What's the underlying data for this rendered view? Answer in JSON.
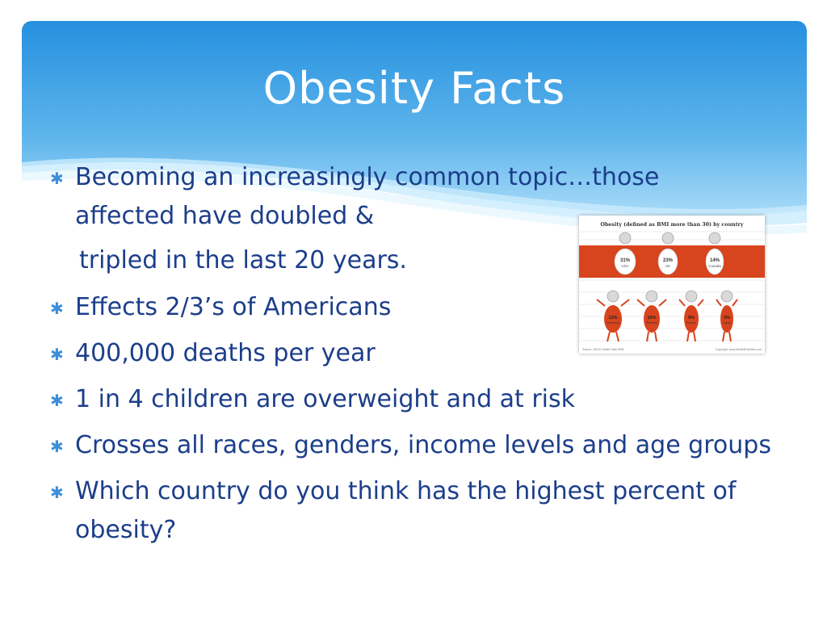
{
  "slide": {
    "title": "Obesity Facts",
    "bullets": [
      {
        "text": "Becoming an increasingly common topic…those affected have doubled &"
      },
      {
        "text": "tripled in the last 20 years.",
        "continuation": true
      },
      {
        "text": "Effects 2/3’s of Americans"
      },
      {
        "text": "400,000 deaths per year"
      },
      {
        "text": "1 in 4 children are overweight and at risk"
      },
      {
        "text": "Crosses all races, genders, income levels and age groups"
      },
      {
        "text": "Which country do you think has the highest percent of obesity?"
      }
    ],
    "bullet_icon": "asterisk-bullet-icon"
  },
  "infographic": {
    "heading": "Obesity (defined as BMI more than 30) by country",
    "top_row": [
      {
        "percent": "31%",
        "country": "USA"
      },
      {
        "percent": "23%",
        "country": "UK"
      },
      {
        "percent": "14%",
        "country": "Canada"
      }
    ],
    "bottom_row": [
      {
        "percent": "13%",
        "country": "Germany"
      },
      {
        "percent": "10%",
        "country": "Sweden"
      },
      {
        "percent": "9%",
        "country": "France"
      },
      {
        "percent": "3%",
        "country": "Japan"
      }
    ],
    "footer_left": "Source: OECD Health Data 2005",
    "footer_right": "Copyright: www.MindfulFamilies.com"
  },
  "colors": {
    "header_blue": "#2f9be3",
    "header_light": "#bfe4fb",
    "text_blue": "#1c3e8a",
    "bullet_blue": "#3f8fd6",
    "band_orange": "#d8441d"
  }
}
